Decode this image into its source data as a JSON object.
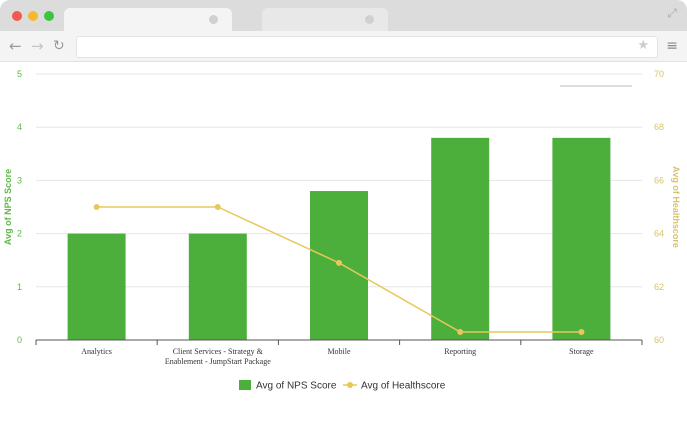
{
  "browser": {
    "icons": {
      "back": "back-arrow-icon",
      "forward": "forward-arrow-icon",
      "reload": "reload-icon",
      "bookmark": "star-icon",
      "menu": "hamburger-menu-icon",
      "expand": "expand-icon"
    }
  },
  "colors": {
    "bar": "#4caf3c",
    "line": "#e8c85a",
    "left_axis": "#5db849",
    "right_axis": "#d9c36a"
  },
  "chart_data": {
    "type": "bar",
    "title": "",
    "categories": [
      [
        "Analytics"
      ],
      [
        "Client Services - Strategy &",
        "Enablement - JumpStart Package"
      ],
      [
        "Mobile"
      ],
      [
        "Reporting"
      ],
      [
        "Storage"
      ]
    ],
    "series": [
      {
        "name": "Avg of NPS Score",
        "type": "bar",
        "axis": "left",
        "values": [
          2.0,
          2.0,
          2.8,
          3.8,
          3.8
        ]
      },
      {
        "name": "Avg of Healthscore",
        "type": "line",
        "axis": "right",
        "values": [
          65.0,
          65.0,
          62.9,
          60.3,
          60.3
        ]
      }
    ],
    "y_left": {
      "label": "Avg of NPS Score",
      "range": [
        0,
        5
      ],
      "ticks": [
        "0",
        "1",
        "2",
        "3",
        "4",
        "5"
      ]
    },
    "y_right": {
      "label": "Avg of Healthscore",
      "range": [
        60,
        70
      ],
      "ticks": [
        "60",
        "62",
        "64",
        "66",
        "68",
        "70"
      ]
    },
    "grid": true,
    "legend": "bottom-center"
  }
}
